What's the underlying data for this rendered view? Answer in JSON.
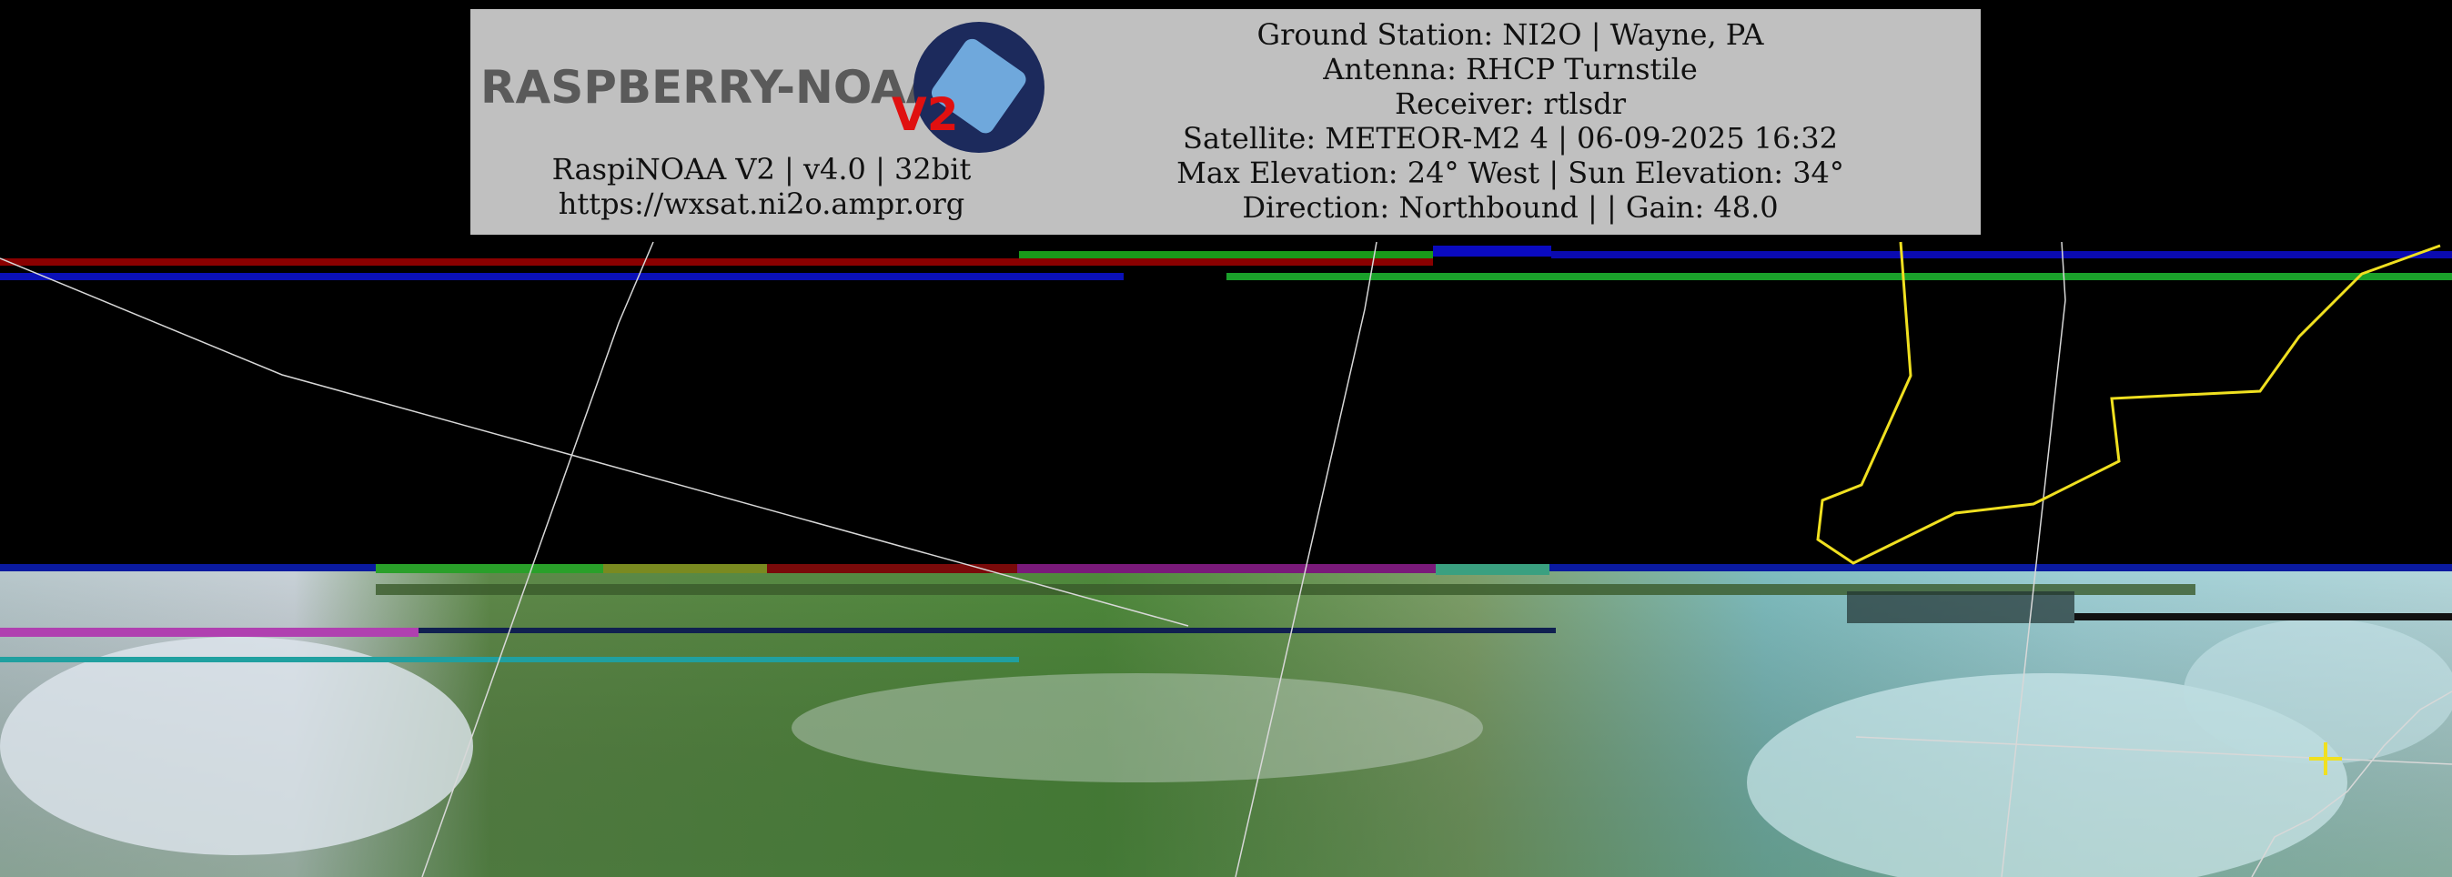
{
  "header": {
    "logo_text": "RASPBERRY-NOAA",
    "logo_badge": "V2",
    "left_lines": [
      "RaspiNOAA V2 | v4.0 | 32bit",
      "https://wxsat.ni2o.ampr.org"
    ],
    "right_lines": [
      "Ground Station: NI2O | Wayne, PA",
      "Antenna: RHCP Turnstile",
      "Receiver: rtlsdr",
      "Satellite: METEOR-M2 4 | 06-09-2025 16:32",
      "Max Elevation: 24° West | Sun Elevation: 34°",
      "Direction: Northbound | | Gain: 48.0"
    ]
  }
}
